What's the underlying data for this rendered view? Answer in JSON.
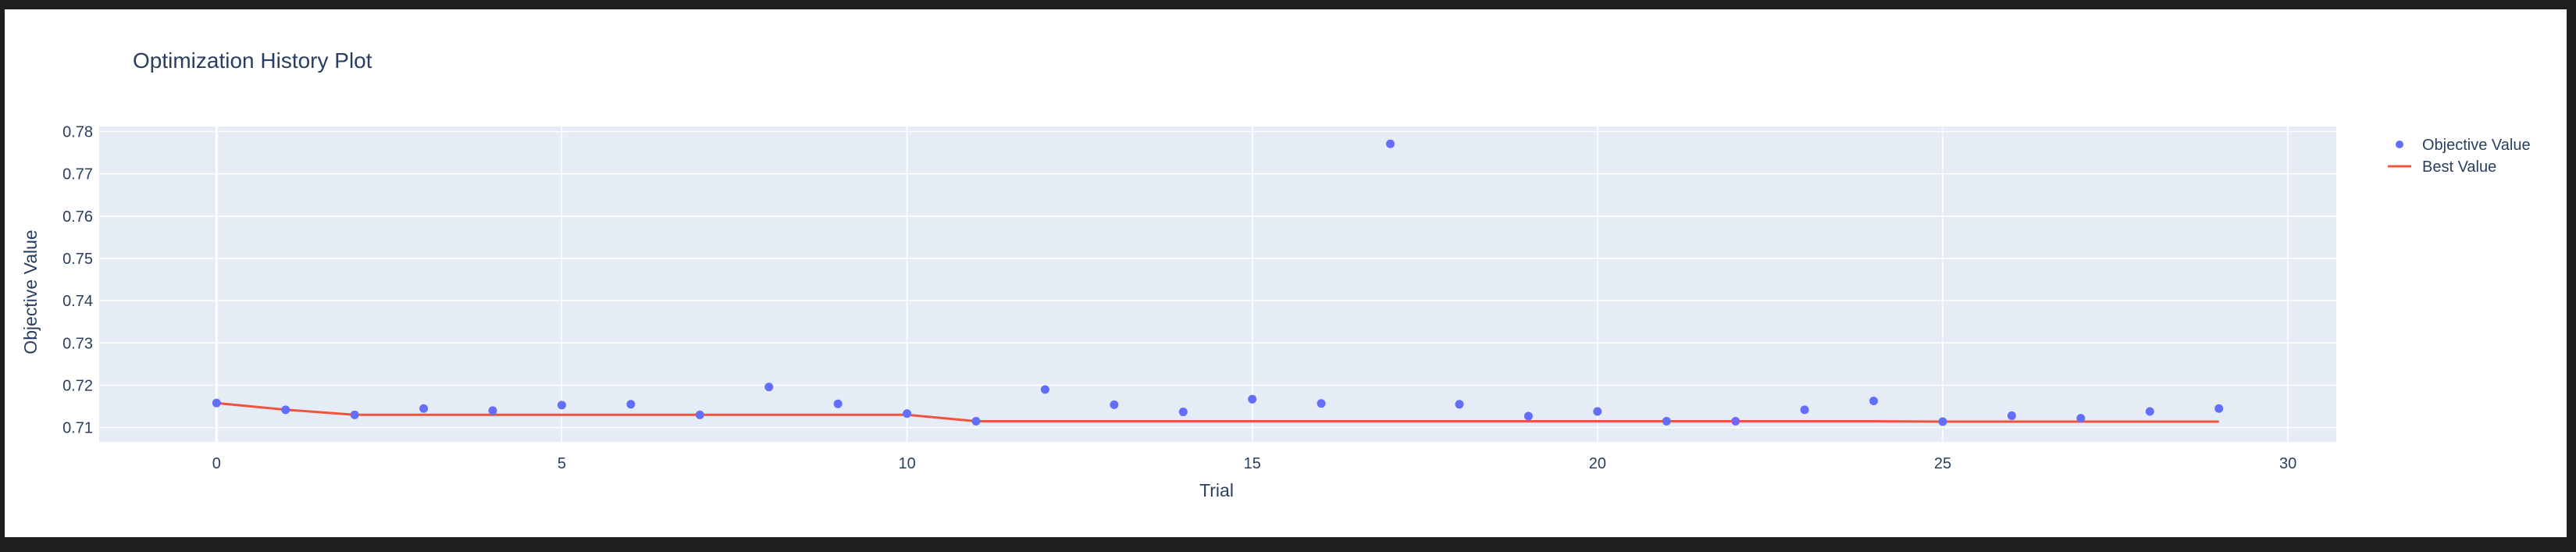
{
  "chart_data": {
    "type": "scatter",
    "title": "Optimization History Plot",
    "xlabel": "Trial",
    "ylabel": "Objective Value",
    "xlim": [
      -1.7,
      30.7
    ],
    "ylim": [
      0.7066,
      0.7812
    ],
    "x_ticks": [
      0,
      5,
      10,
      15,
      20,
      25,
      30
    ],
    "y_ticks": [
      0.71,
      0.72,
      0.73,
      0.74,
      0.75,
      0.76,
      0.77,
      0.78
    ],
    "grid": true,
    "legend_position": "top-right",
    "colors": {
      "plot_bg": "#e5ecf6",
      "grid": "#ffffff",
      "objective": "#636efa",
      "best": "#ef553b",
      "text": "#2a3f5f"
    },
    "series": [
      {
        "name": "Objective Value",
        "mode": "markers",
        "x": [
          0,
          1,
          2,
          3,
          4,
          5,
          6,
          7,
          8,
          9,
          10,
          11,
          12,
          13,
          14,
          15,
          16,
          17,
          18,
          19,
          20,
          21,
          22,
          23,
          24,
          25,
          26,
          27,
          28,
          29
        ],
        "values": [
          0.7158,
          0.7142,
          0.713,
          0.7145,
          0.714,
          0.7153,
          0.7155,
          0.713,
          0.7196,
          0.7156,
          0.7133,
          0.7115,
          0.719,
          0.7154,
          0.7137,
          0.7167,
          0.7157,
          0.7771,
          0.7155,
          0.7127,
          0.7138,
          0.7115,
          0.7115,
          0.7142,
          0.7163,
          0.7114,
          0.7128,
          0.7122,
          0.7138,
          0.7145
        ]
      },
      {
        "name": "Best Value",
        "mode": "lines",
        "x": [
          0,
          1,
          2,
          3,
          4,
          5,
          6,
          7,
          8,
          9,
          10,
          11,
          12,
          13,
          14,
          15,
          16,
          17,
          18,
          19,
          20,
          21,
          22,
          23,
          24,
          25,
          26,
          27,
          28,
          29
        ],
        "values": [
          0.7158,
          0.7142,
          0.713,
          0.713,
          0.713,
          0.713,
          0.713,
          0.713,
          0.713,
          0.713,
          0.713,
          0.7115,
          0.7115,
          0.7115,
          0.7115,
          0.7115,
          0.7115,
          0.7115,
          0.7115,
          0.7115,
          0.7115,
          0.7115,
          0.7115,
          0.7115,
          0.7115,
          0.7114,
          0.7114,
          0.7114,
          0.7114,
          0.7114
        ]
      }
    ]
  }
}
